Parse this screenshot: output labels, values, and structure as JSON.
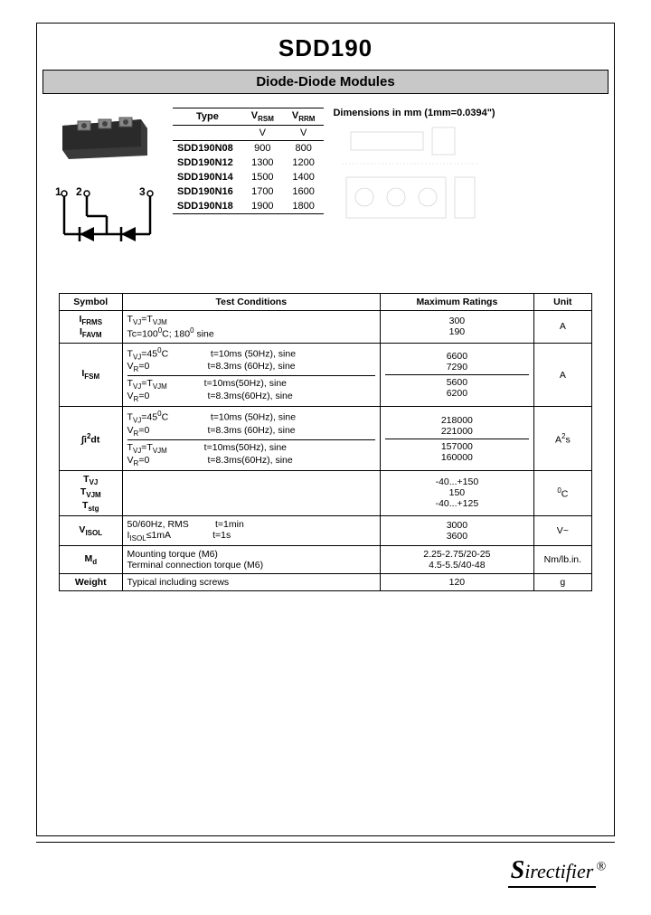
{
  "header": {
    "title": "SDD190",
    "subtitle": "Diode-Diode Modules"
  },
  "dimensions_label": "Dimensions in mm (1mm=0.0394\")",
  "type_table": {
    "headers": [
      "Type",
      "V_RSM",
      "V_RRM"
    ],
    "unit_row": [
      "",
      "V",
      "V"
    ],
    "rows": [
      [
        "SDD190N08",
        "900",
        "800"
      ],
      [
        "SDD190N12",
        "1300",
        "1200"
      ],
      [
        "SDD190N14",
        "1500",
        "1400"
      ],
      [
        "SDD190N16",
        "1700",
        "1600"
      ],
      [
        "SDD190N18",
        "1900",
        "1800"
      ]
    ]
  },
  "ratings_table": {
    "headers": [
      "Symbol",
      "Test Conditions",
      "Maximum Ratings",
      "Unit"
    ],
    "rows": [
      {
        "sym": "I<sub>FRMS</sub><br>I<sub>FAVM</sub>",
        "cond": "T<sub>VJ</sub>=T<sub>VJM</sub><br>Tc=100<sup>0</sup>C; 180<sup>0</sup> sine",
        "max": "300<br>190",
        "unit": "A"
      },
      {
        "sym": "I<sub>FSM</sub>",
        "cond": "T<sub>VJ</sub>=45<sup>0</sup>C &nbsp;&nbsp;&nbsp;&nbsp;&nbsp;&nbsp;&nbsp;&nbsp;&nbsp;&nbsp;&nbsp;&nbsp;&nbsp;&nbsp; t=10ms (50Hz), sine<br>V<sub>R</sub>=0 &nbsp;&nbsp;&nbsp;&nbsp;&nbsp;&nbsp;&nbsp;&nbsp;&nbsp;&nbsp;&nbsp;&nbsp;&nbsp;&nbsp;&nbsp;&nbsp;&nbsp;&nbsp;&nbsp;&nbsp; t=8.3ms (60Hz), sine<hr style='margin:2px 0;border:none;border-top:1px solid #000'>T<sub>VJ</sub>=T<sub>VJM</sub> &nbsp;&nbsp;&nbsp;&nbsp;&nbsp;&nbsp;&nbsp;&nbsp;&nbsp;&nbsp;&nbsp;&nbsp; t=10ms(50Hz), sine<br>V<sub>R</sub>=0 &nbsp;&nbsp;&nbsp;&nbsp;&nbsp;&nbsp;&nbsp;&nbsp;&nbsp;&nbsp;&nbsp;&nbsp;&nbsp;&nbsp;&nbsp;&nbsp;&nbsp;&nbsp;&nbsp;&nbsp; t=8.3ms(60Hz), sine",
        "max": "6600<br>7290<hr style='margin:2px 0;border:none;border-top:1px solid #000'>5600<br>6200",
        "unit": "A"
      },
      {
        "sym": "∫i<sup>2</sup>dt",
        "cond": "T<sub>VJ</sub>=45<sup>0</sup>C &nbsp;&nbsp;&nbsp;&nbsp;&nbsp;&nbsp;&nbsp;&nbsp;&nbsp;&nbsp;&nbsp;&nbsp;&nbsp;&nbsp; t=10ms (50Hz), sine<br>V<sub>R</sub>=0 &nbsp;&nbsp;&nbsp;&nbsp;&nbsp;&nbsp;&nbsp;&nbsp;&nbsp;&nbsp;&nbsp;&nbsp;&nbsp;&nbsp;&nbsp;&nbsp;&nbsp;&nbsp;&nbsp;&nbsp; t=8.3ms (60Hz), sine<hr style='margin:2px 0;border:none;border-top:1px solid #000'>T<sub>VJ</sub>=T<sub>VJM</sub> &nbsp;&nbsp;&nbsp;&nbsp;&nbsp;&nbsp;&nbsp;&nbsp;&nbsp;&nbsp;&nbsp;&nbsp; t=10ms(50Hz), sine<br>V<sub>R</sub>=0 &nbsp;&nbsp;&nbsp;&nbsp;&nbsp;&nbsp;&nbsp;&nbsp;&nbsp;&nbsp;&nbsp;&nbsp;&nbsp;&nbsp;&nbsp;&nbsp;&nbsp;&nbsp;&nbsp;&nbsp; t=8.3ms(60Hz), sine",
        "max": "218000<br>221000<hr style='margin:2px 0;border:none;border-top:1px solid #000'>157000<br>160000",
        "unit": "A<sup>2</sup>s"
      },
      {
        "sym": "T<sub>VJ</sub><br>T<sub>VJM</sub><br>T<sub>stg</sub>",
        "cond": "",
        "max": "-40...+150<br>150<br>-40...+125",
        "unit": "<sup>0</sup>C"
      },
      {
        "sym": "V<sub>ISOL</sub>",
        "cond": "50/60Hz, RMS &nbsp;&nbsp;&nbsp;&nbsp;&nbsp;&nbsp;&nbsp;&nbsp; t=1min<br>I<sub>ISOL</sub>≤1mA &nbsp;&nbsp;&nbsp;&nbsp;&nbsp;&nbsp;&nbsp;&nbsp;&nbsp;&nbsp;&nbsp;&nbsp;&nbsp;&nbsp; t=1s",
        "max": "3000<br>3600",
        "unit": "V~"
      },
      {
        "sym": "M<sub>d</sub>",
        "cond": "Mounting torque (M6)<br>Terminal connection torque (M6)",
        "max": "2.25-2.75/20-25<br>4.5-5.5/40-48",
        "unit": "Nm/lb.in."
      },
      {
        "sym": "Weight",
        "cond": "Typical including screws",
        "max": "120",
        "unit": "g"
      }
    ]
  },
  "logo": {
    "text": "irectifier",
    "prefix": "S"
  }
}
